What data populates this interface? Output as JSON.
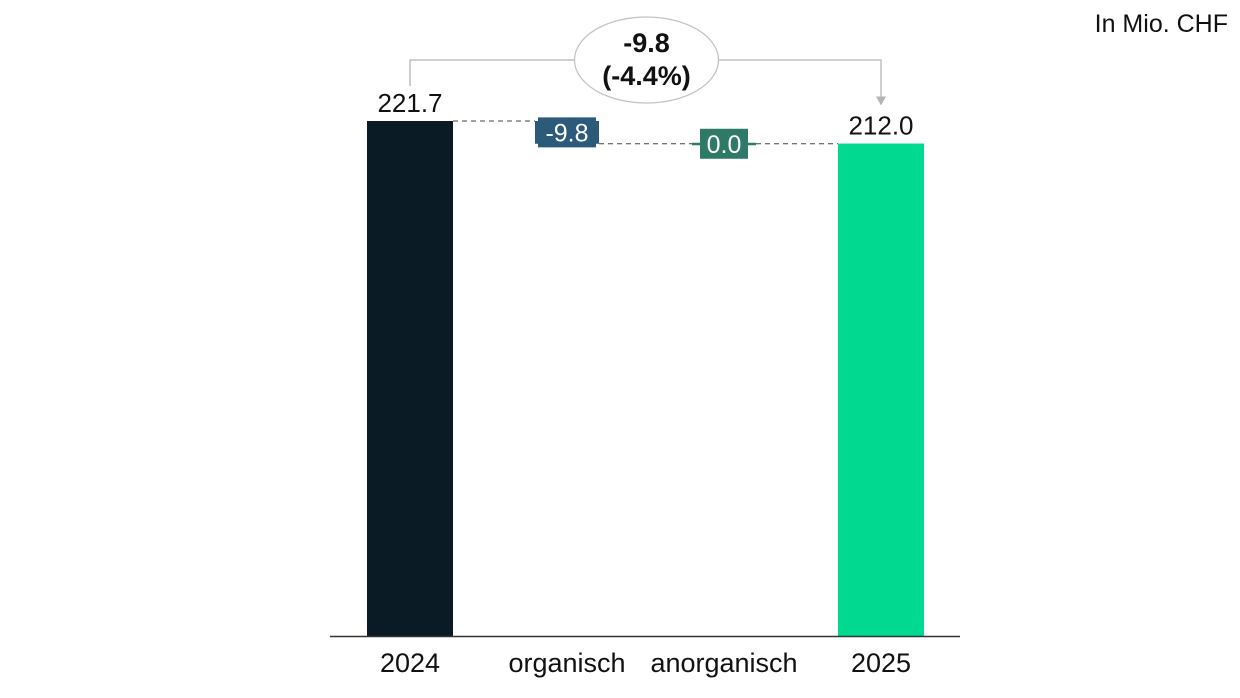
{
  "unit_label": "In Mio. CHF",
  "chart_data": {
    "type": "waterfall",
    "categories": [
      "2024",
      "organisch",
      "anorganisch",
      "2025"
    ],
    "steps": [
      {
        "category": "2024",
        "kind": "total",
        "value": 221.7,
        "label": "221.7",
        "color": "#0a1b26"
      },
      {
        "category": "organisch",
        "kind": "delta",
        "value": -9.8,
        "label": "-9.8",
        "color": "#2b5a7a"
      },
      {
        "category": "anorganisch",
        "kind": "delta",
        "value": 0.0,
        "label": "0.0",
        "color": "#2e7a66"
      },
      {
        "category": "2025",
        "kind": "total",
        "value": 212.0,
        "label": "212.0",
        "color": "#00d98f"
      }
    ],
    "change_annotation": {
      "from": "2024",
      "to": "2025",
      "value": "-9.8",
      "percent": "(-4.4%)"
    },
    "ylim": [
      0,
      221.7
    ],
    "grid": false,
    "legend": "none"
  }
}
